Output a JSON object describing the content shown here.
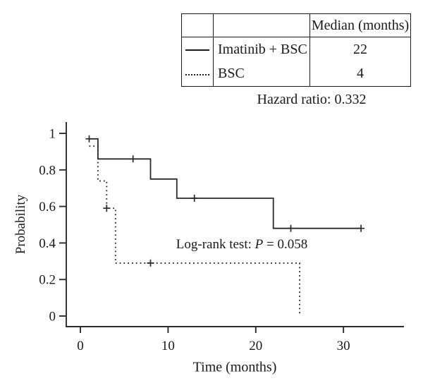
{
  "legend_table": {
    "header": {
      "swatch": "",
      "label": "",
      "median": "Median (months)"
    },
    "rows": [
      {
        "swatch": "solid-line",
        "label": "Imatinib + BSC",
        "median": "22"
      },
      {
        "swatch": "dotted-line",
        "label": "BSC",
        "median": "4"
      }
    ]
  },
  "annotations": {
    "hazard_ratio": "Hazard ratio: 0.332",
    "log_rank": {
      "prefix": "Log-rank test: ",
      "variable": "P",
      "suffix": " = 0.058"
    }
  },
  "chart_data": {
    "type": "line",
    "variant": "kaplan_meier_step",
    "title": "",
    "xlabel": "Time (months)",
    "ylabel": "Probability",
    "xlim": [
      -1.61,
      36.9
    ],
    "ylim": [
      -0.058,
      1.062
    ],
    "x_ticks": [
      0,
      10,
      20,
      30
    ],
    "x_tick_labels": [
      "0",
      "10",
      "20",
      "30"
    ],
    "y_ticks": [
      0,
      0.2,
      0.4,
      0.6,
      0.8,
      1
    ],
    "y_tick_labels": [
      "0",
      "0.2",
      "0.4",
      "0.6",
      "0.8",
      "1"
    ],
    "grid": false,
    "legend_position": "top-right-table",
    "line_color": "#2b2b2b",
    "series": [
      {
        "name": "Imatinib + BSC",
        "style": "solid",
        "median_months": 22,
        "steps": [
          [
            1,
            0.97
          ],
          [
            2,
            0.86
          ],
          [
            8,
            0.75
          ],
          [
            11,
            0.645
          ],
          [
            22,
            0.48
          ],
          [
            32,
            0.48
          ]
        ],
        "censor_marks": [
          [
            1,
            0.97
          ],
          [
            6,
            0.86
          ],
          [
            13,
            0.645
          ],
          [
            24,
            0.48
          ],
          [
            32,
            0.48
          ]
        ]
      },
      {
        "name": "BSC",
        "style": "dotted",
        "median_months": 4,
        "steps": [
          [
            1,
            0.93
          ],
          [
            2,
            0.74
          ],
          [
            3,
            0.59
          ],
          [
            4,
            0.29
          ],
          [
            25,
            0.29
          ],
          [
            25,
            0
          ]
        ],
        "censor_marks": [
          [
            3,
            0.59
          ],
          [
            8,
            0.29
          ]
        ]
      }
    ],
    "annotations": [
      "Log-rank test: P = 0.058",
      "Hazard ratio: 0.332"
    ]
  }
}
